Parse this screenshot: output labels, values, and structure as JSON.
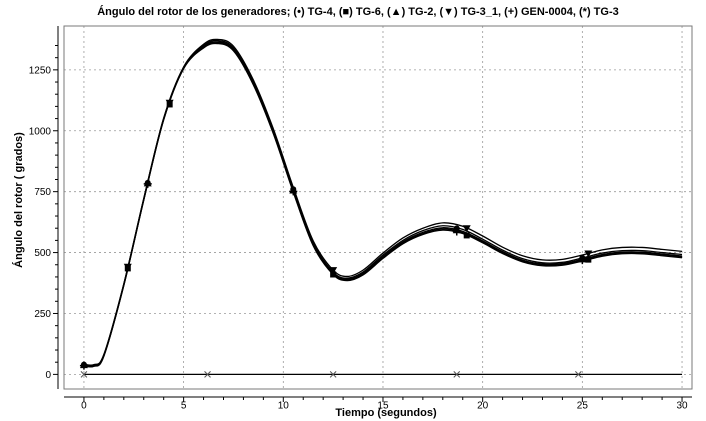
{
  "chart_data": {
    "type": "line",
    "title": "Ángulo del rotor de los generadores; (•) TG-4, (■) TG-6, (▲) TG-2, (▼) TG-3_1, (+) GEN-0004, (*) TG-3",
    "xlabel": "Tiempo (segundos)",
    "ylabel": "Ángulo del rotor ( grados)",
    "xlim": [
      -1,
      30.5
    ],
    "ylim": [
      -60,
      1430
    ],
    "xticks": [
      0,
      5,
      10,
      15,
      20,
      25,
      30
    ],
    "yticks": [
      0,
      250,
      500,
      750,
      1000,
      1250
    ],
    "grid": true,
    "colors": {
      "line": "#000000",
      "grid": "#9a9a9a",
      "frame": "#7a7a7a"
    },
    "series": [
      {
        "marker": "circle",
        "x": [
          0,
          0.5,
          1,
          2,
          3,
          4,
          5,
          6,
          6.7,
          7.5,
          8.5,
          9.5,
          10.5,
          11.5,
          12.5,
          13.2,
          14,
          15,
          16,
          17,
          18,
          19,
          20,
          21,
          22,
          23,
          24,
          25,
          26,
          27,
          28,
          29,
          30
        ],
        "y": [
          40,
          38,
          80,
          370,
          720,
          1050,
          1260,
          1350,
          1370,
          1340,
          1200,
          1000,
          760,
          540,
          420,
          395,
          420,
          490,
          550,
          590,
          610,
          595,
          555,
          510,
          475,
          458,
          460,
          478,
          498,
          508,
          508,
          500,
          492
        ]
      },
      {
        "marker": "square",
        "x": [
          0,
          0.5,
          1,
          2,
          3,
          4,
          5,
          6,
          6.7,
          7.5,
          8.5,
          9.5,
          10.5,
          11.5,
          12.5,
          13.2,
          14,
          15,
          16,
          17,
          18,
          19,
          20,
          21,
          22,
          23,
          24,
          25,
          26,
          27,
          28,
          29,
          30
        ],
        "y": [
          35,
          33,
          75,
          365,
          715,
          1045,
          1255,
          1340,
          1358,
          1328,
          1188,
          988,
          748,
          528,
          410,
          385,
          408,
          476,
          536,
          574,
          592,
          578,
          540,
          496,
          462,
          446,
          448,
          465,
          485,
          495,
          495,
          487,
          479
        ]
      },
      {
        "marker": "triangle-up",
        "x": [
          0,
          0.5,
          1,
          2,
          3,
          4,
          5,
          6,
          6.7,
          7.5,
          8.5,
          9.5,
          10.5,
          11.5,
          12.5,
          13.2,
          14,
          15,
          16,
          17,
          18,
          19,
          20,
          21,
          22,
          23,
          24,
          25,
          26,
          27,
          28,
          29,
          30
        ],
        "y": [
          38,
          36,
          78,
          368,
          718,
          1048,
          1258,
          1346,
          1365,
          1335,
          1195,
          995,
          755,
          535,
          416,
          391,
          415,
          484,
          544,
          583,
          602,
          587,
          548,
          504,
          469,
          453,
          455,
          472,
          492,
          502,
          502,
          494,
          486
        ]
      },
      {
        "marker": "triangle-down",
        "x": [
          0,
          0.5,
          1,
          2,
          3,
          4,
          5,
          6,
          6.7,
          7.5,
          8.5,
          9.5,
          10.5,
          11.5,
          12.5,
          13.2,
          14,
          15,
          16,
          17,
          18,
          19,
          20,
          21,
          22,
          23,
          24,
          25,
          26,
          27,
          28,
          29,
          30
        ],
        "y": [
          42,
          40,
          82,
          372,
          722,
          1052,
          1262,
          1355,
          1375,
          1347,
          1208,
          1008,
          768,
          548,
          428,
          402,
          428,
          498,
          560,
          600,
          622,
          608,
          568,
          522,
          487,
          470,
          472,
          490,
          511,
          521,
          521,
          513,
          505
        ]
      },
      {
        "marker": "plus",
        "x": [
          0,
          0.5,
          1,
          2,
          3,
          4,
          5,
          6,
          6.7,
          7.5,
          8.5,
          9.5,
          10.5,
          11.5,
          12.5,
          13.2,
          14,
          15,
          16,
          17,
          18,
          19,
          20,
          21,
          22,
          23,
          24,
          25,
          26,
          27,
          28,
          29,
          30
        ],
        "y": [
          36,
          34,
          76,
          366,
          716,
          1046,
          1256,
          1342,
          1361,
          1331,
          1191,
          991,
          751,
          531,
          413,
          388,
          411,
          480,
          540,
          578,
          597,
          582,
          544,
          500,
          466,
          450,
          452,
          469,
          489,
          499,
          499,
          491,
          483
        ]
      },
      {
        "marker": "star",
        "x": [
          0,
          1,
          5,
          10,
          12.5,
          15,
          18.7,
          20,
          25,
          30
        ],
        "y": [
          0,
          0,
          0,
          0,
          0,
          0,
          0,
          0,
          0,
          0
        ]
      }
    ]
  }
}
